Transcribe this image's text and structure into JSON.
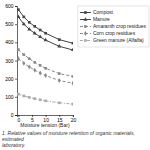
{
  "chart_data": {
    "type": "line",
    "x_label": "Moisture tension (Bar)",
    "annotations": [
      "1. Relative values of moisture retention of organic materials,  estimated",
      "laboratory."
    ],
    "x": [
      0,
      2,
      4,
      6,
      8,
      10,
      15,
      20
    ],
    "series": [
      {
        "name": "Compost",
        "color": "#444444",
        "line_style": "solid",
        "marker": "square",
        "values": [
          580,
          540,
          510,
          488,
          468,
          450,
          415,
          395
        ]
      },
      {
        "name": "Manure",
        "color": "#444444",
        "line_style": "solid",
        "marker": "triangle",
        "values": [
          540,
          500,
          472,
          450,
          430,
          412,
          378,
          358
        ]
      },
      {
        "name": "Amaranth crop residues",
        "color": "#888888",
        "line_style": "dashed",
        "marker": "square",
        "values": [
          360,
          332,
          310,
          290,
          273,
          257,
          228,
          212
        ]
      },
      {
        "name": "Corn crop residues",
        "color": "#888888",
        "line_style": "dashed",
        "marker": "diamond",
        "values": [
          310,
          285,
          265,
          247,
          231,
          217,
          190,
          175
        ]
      },
      {
        "name": "Green manure (Alfalfa)",
        "color": "#aaaaaa",
        "line_style": "dashdot",
        "marker": "square",
        "values": [
          115,
          105,
          97,
          90,
          84,
          78,
          67,
          60
        ]
      }
    ],
    "xlim": [
      -0.5,
      20
    ],
    "ylim": [
      0,
      600
    ],
    "xticks": [
      0,
      5,
      10,
      15,
      20
    ],
    "yticks": [
      0,
      100,
      200,
      300,
      400,
      500,
      600
    ],
    "grid": false,
    "legend": "right"
  }
}
